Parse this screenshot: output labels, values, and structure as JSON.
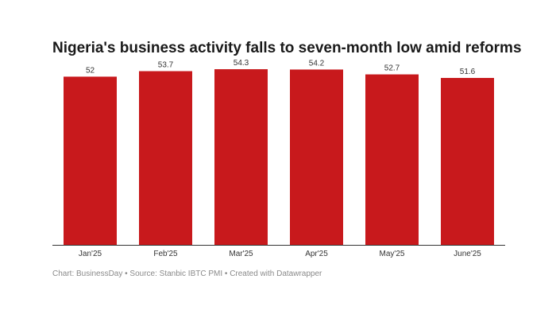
{
  "chart_data": {
    "type": "bar",
    "title": "Nigeria's business activity falls to seven-month low amid reforms",
    "categories": [
      "Jan'25",
      "Feb'25",
      "Mar'25",
      "Apr'25",
      "May'25",
      "June'25"
    ],
    "values": [
      52,
      53.7,
      54.3,
      54.2,
      52.7,
      51.6
    ],
    "value_labels": [
      "52",
      "53.7",
      "54.3",
      "54.2",
      "52.7",
      "51.6"
    ],
    "ylim": [
      0,
      58
    ],
    "grid": false,
    "bar_color": "#c8191c",
    "xlabel": "",
    "ylabel": ""
  },
  "footer": {
    "credit": "Chart: BusinessDay • Source: Stanbic IBTC PMI • Created with Datawrapper"
  }
}
